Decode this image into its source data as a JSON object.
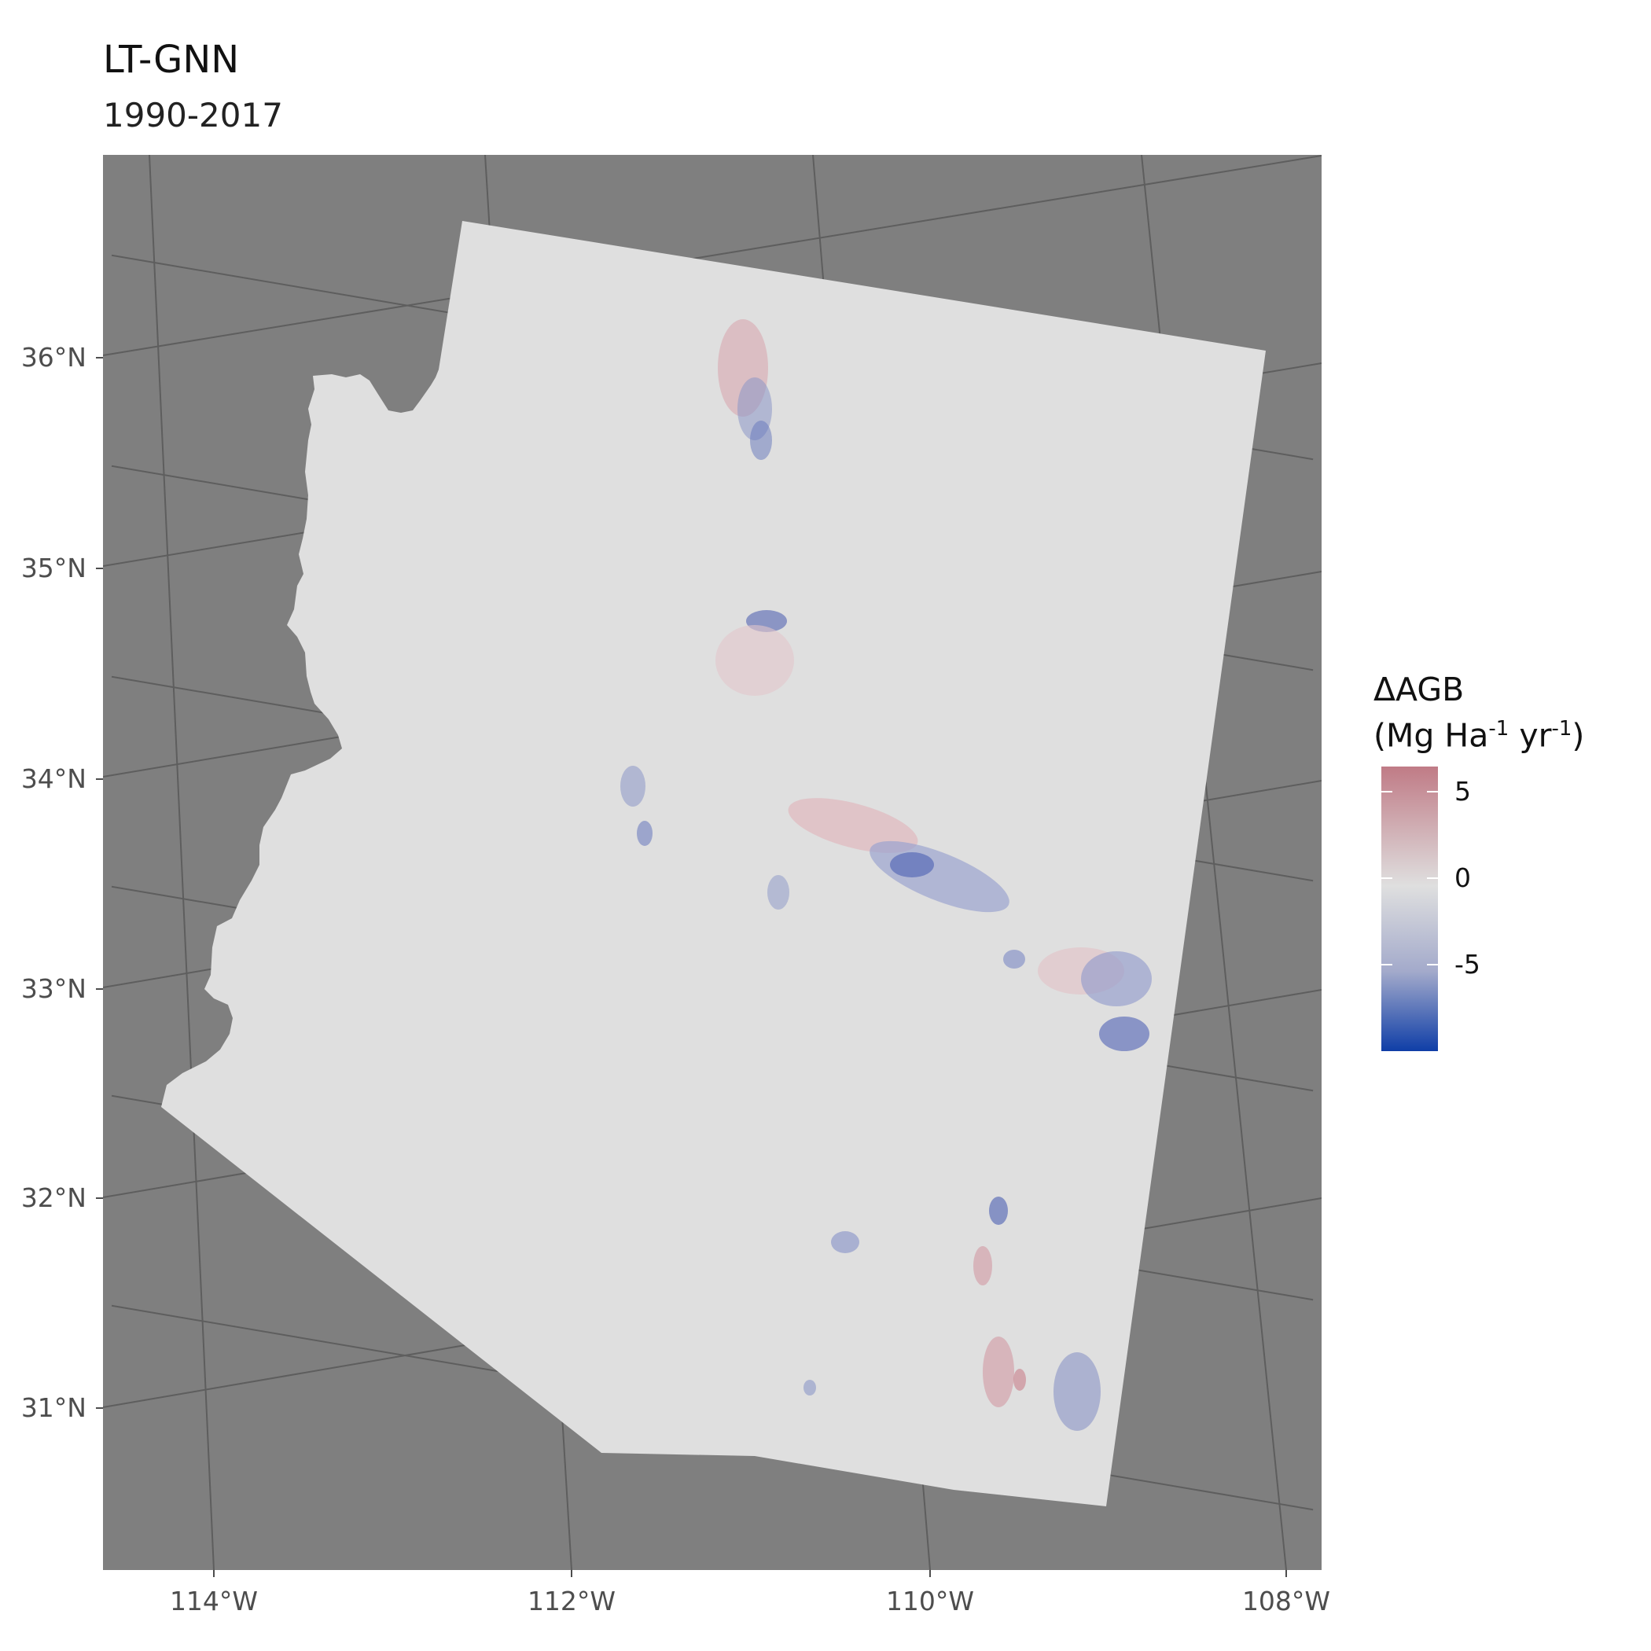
{
  "title": "LT-GNN",
  "subtitle": "1990-2017",
  "legend": {
    "title_line1": "ΔAGB",
    "title_line2_parts": [
      "(Mg Ha",
      "-1",
      " yr",
      "-1",
      ")"
    ],
    "ticks": [
      {
        "label": "5",
        "value": 5
      },
      {
        "label": "0",
        "value": 0
      },
      {
        "label": "-5",
        "value": -5
      }
    ],
    "range": [
      -10,
      6.5
    ],
    "colors": {
      "high": "#c07b86",
      "mid": "#dfdfdf",
      "low": "#0f3ea7"
    }
  },
  "axes": {
    "lat_labels": [
      "36°N",
      "35°N",
      "34°N",
      "33°N",
      "32°N",
      "31°N"
    ],
    "lon_labels": [
      "114°W",
      "112°W",
      "110°W",
      "108°W"
    ]
  },
  "colors": {
    "panel_background": "#7f7f7f",
    "graticule": "#5e5e5e",
    "land": "#dfdfdf",
    "gain": "#d29aa3",
    "loss": "#3f55b0"
  }
}
